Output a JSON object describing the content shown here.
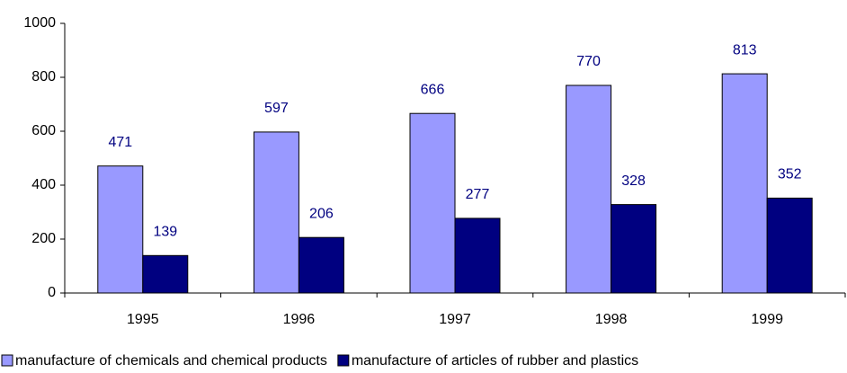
{
  "chart_data": {
    "type": "bar",
    "categories": [
      "1995",
      "1996",
      "1997",
      "1998",
      "1999"
    ],
    "series": [
      {
        "name": "manufacture of chemicals and chemical products",
        "color": "#9999ff",
        "values": [
          471,
          597,
          666,
          770,
          813
        ]
      },
      {
        "name": "manufacture of articles of rubber and plastics",
        "color": "#000080",
        "values": [
          139,
          206,
          277,
          328,
          352
        ]
      }
    ],
    "ylim": [
      0,
      1000
    ],
    "yticks": [
      0,
      200,
      400,
      600,
      800,
      1000
    ],
    "grid": false,
    "legend": "bottom"
  }
}
